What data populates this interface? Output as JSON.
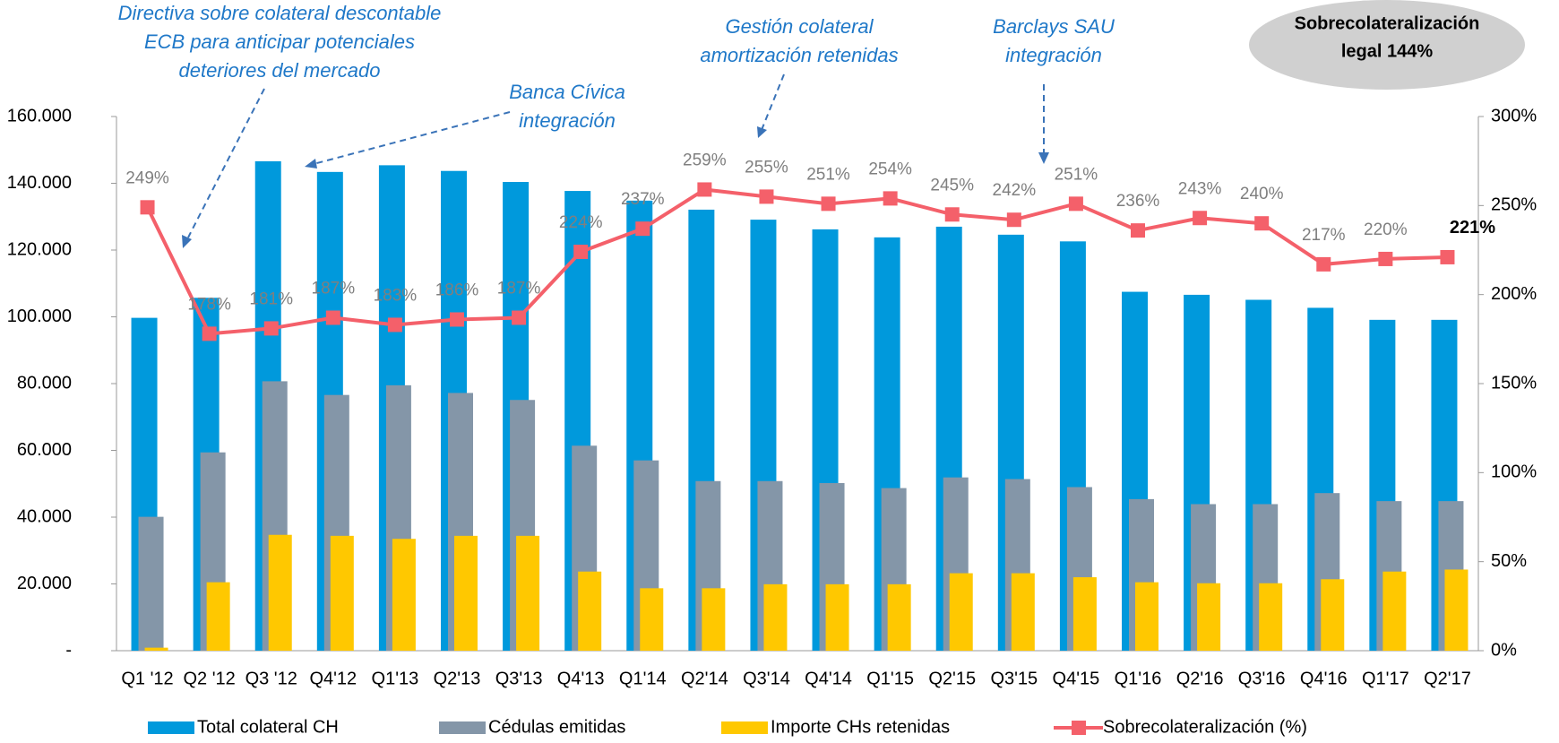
{
  "chart_data": {
    "type": "bar",
    "categories": [
      "Q1 '12",
      "Q2 '12",
      "Q3 '12",
      "Q4'12",
      "Q1'13",
      "Q2'13",
      "Q3'13",
      "Q4'13",
      "Q1'14",
      "Q2'14",
      "Q3'14",
      "Q4'14",
      "Q1'15",
      "Q2'15",
      "Q3'15",
      "Q4'15",
      "Q1'16",
      "Q2'16",
      "Q3'16",
      "Q4'16",
      "Q1'17",
      "Q2'17"
    ],
    "series": [
      {
        "name": "Total colateral CH",
        "color": "#0099dc",
        "values": [
          99700,
          105700,
          146600,
          143400,
          145400,
          143700,
          140400,
          137700,
          134800,
          132100,
          129100,
          126200,
          123800,
          127000,
          124600,
          122600,
          107500,
          106600,
          105100,
          102700,
          99100,
          99100
        ]
      },
      {
        "name": "Cédulas emitidas",
        "color": "#8496a8",
        "values": [
          40100,
          59400,
          80700,
          76600,
          79500,
          77200,
          75100,
          61400,
          57000,
          50800,
          50800,
          50200,
          48700,
          51900,
          51400,
          49000,
          45400,
          43900,
          43900,
          47200,
          44800,
          44800
        ]
      },
      {
        "name": "Importe CHs retenidas",
        "color": "#ffc800",
        "values": [
          900,
          20500,
          34700,
          34400,
          33500,
          34400,
          34400,
          23700,
          18700,
          18700,
          19900,
          19900,
          19900,
          23200,
          23200,
          22000,
          20500,
          20200,
          20200,
          21400,
          23700,
          24300
        ]
      },
      {
        "name": "Sobrecolateralización (%)",
        "color": "#f4606a",
        "type": "line",
        "axis": "y2",
        "values": [
          249,
          178,
          181,
          187,
          183,
          186,
          187,
          224,
          237,
          259,
          255,
          251,
          254,
          245,
          242,
          251,
          236,
          243,
          240,
          217,
          220,
          221
        ],
        "value_labels": [
          "249%",
          "178%",
          "181%",
          "187%",
          "183%",
          "186%",
          "187%",
          "224%",
          "237%",
          "259%",
          "255%",
          "251%",
          "254%",
          "245%",
          "242%",
          "251%",
          "236%",
          "243%",
          "240%",
          "217%",
          "220%",
          "221%"
        ]
      }
    ],
    "ylim": [
      0,
      160000
    ],
    "yticks": [
      {
        "value": 0,
        "label": "-"
      },
      {
        "value": 20000,
        "label": "20.000"
      },
      {
        "value": 40000,
        "label": "40.000"
      },
      {
        "value": 60000,
        "label": "60.000"
      },
      {
        "value": 80000,
        "label": "80.000"
      },
      {
        "value": 100000,
        "label": "100.000"
      },
      {
        "value": 120000,
        "label": "120.000"
      },
      {
        "value": 140000,
        "label": "140.000"
      },
      {
        "value": 160000,
        "label": "160.000"
      }
    ],
    "y2lim": [
      0,
      300
    ],
    "y2ticks": [
      {
        "value": 0,
        "label": "0%"
      },
      {
        "value": 50,
        "label": "50%"
      },
      {
        "value": 100,
        "label": "100%"
      },
      {
        "value": 150,
        "label": "150%"
      },
      {
        "value": 200,
        "label": "200%"
      },
      {
        "value": 250,
        "label": "250%"
      },
      {
        "value": 300,
        "label": "300%"
      }
    ],
    "annotations": [
      [
        "Directiva sobre colateral descontable",
        "ECB para anticipar potenciales",
        "deteriores del mercado"
      ],
      [
        "Banca Cívica",
        "integración"
      ],
      [
        "Gestión colateral",
        "amortización retenidas"
      ],
      [
        "Barclays SAU",
        "integración"
      ]
    ],
    "callout": [
      "Sobrecolateralización",
      "legal 144%"
    ],
    "grid": false
  }
}
